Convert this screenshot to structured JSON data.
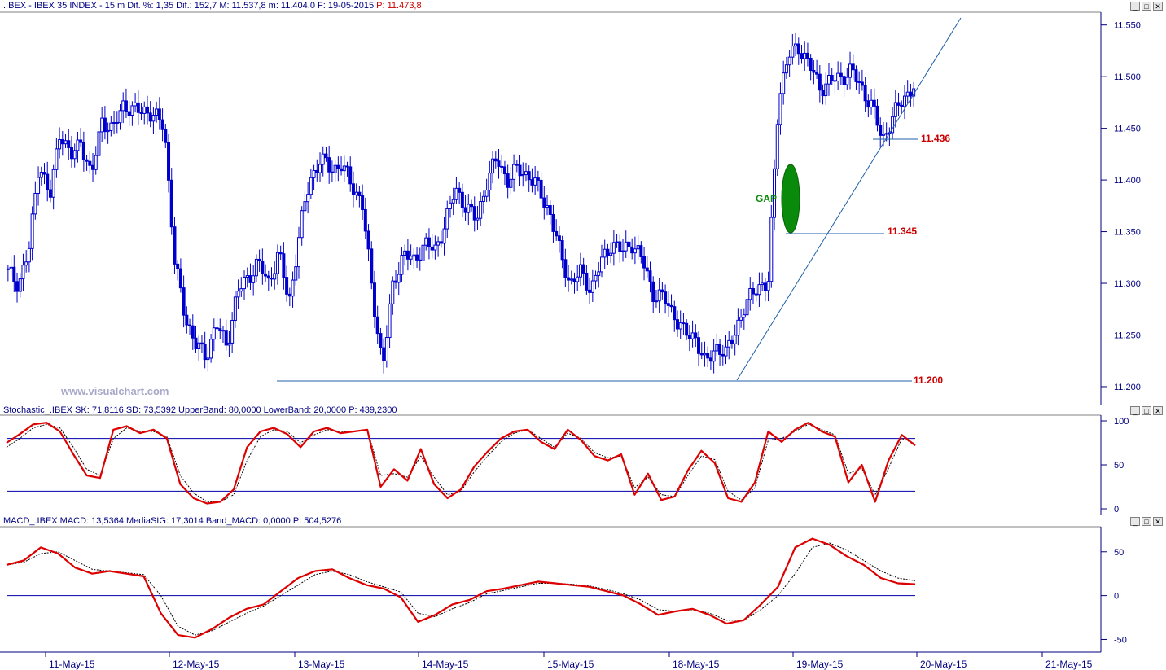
{
  "price_header": {
    "name": ".IBEX - IBEX 35 INDEX -  15 m  Dif. %: 1,35  Dif.: 152,7  M: 11.537,8  m: 11.404,0  F: 19-05-2015",
    "last": "P: 11.473,8"
  },
  "stoch_header": "Stochastic_.IBEX SK: 71,8116  SD: 73,5392  UpperBand: 80,0000  LowerBand: 20,0000  P: 439,2300",
  "macd_header": "MACD_.IBEX MACD: 13,5364  MediaSIG: 17,3014  Band_MACD: 0,0000  P: 504,5276",
  "watermark": "www.visualchart.com",
  "window_buttons": {
    "minimize": "_",
    "restore": "□",
    "close": "✕"
  },
  "annotations": {
    "gap": "GAP",
    "level_high": "11.436",
    "level_mid": "11.345",
    "level_low": "11.200"
  },
  "chart_data": [
    {
      "type": "candlestick",
      "title": ".IBEX - IBEX 35 INDEX - 15 m",
      "yticks": [
        "11.550",
        "11.500",
        "11.450",
        "11.400",
        "11.350",
        "11.300",
        "11.250",
        "11.200"
      ],
      "ylim": [
        11185,
        11560
      ],
      "x_dates": [
        "11-May-15",
        "12-May-15",
        "13-May-15",
        "14-May-15",
        "15-May-15",
        "18-May-15",
        "19-May-15",
        "20-May-15",
        "21-May-15"
      ],
      "horizontal_levels": [
        11436,
        11345,
        11200
      ],
      "colors": {
        "candle": "#0000cc",
        "levels": "#1f5fa8",
        "gap": "#0a8a0a",
        "level_text": "#cc0000"
      },
      "close_path": [
        [
          11310,
          11300
        ],
        [
          11330,
          11420
        ],
        [
          11380,
          11450
        ],
        [
          11420,
          11440
        ],
        [
          11400,
          11460
        ],
        [
          11445,
          11475
        ],
        [
          11465,
          11470
        ],
        [
          11460,
          11455
        ],
        [
          11320,
          11270
        ],
        [
          11240,
          11230
        ],
        [
          11260,
          11240
        ],
        [
          11290,
          11305
        ],
        [
          11320,
          11300
        ],
        [
          11330,
          11280
        ],
        [
          11350,
          11400
        ],
        [
          11420,
          11410
        ],
        [
          11415,
          11395
        ],
        [
          11380,
          11290
        ],
        [
          11220,
          11300
        ],
        [
          11330,
          11320
        ],
        [
          11340,
          11330
        ],
        [
          11360,
          11390
        ],
        [
          11375,
          11360
        ],
        [
          11400,
          11420
        ],
        [
          11400,
          11410
        ],
        [
          11405,
          11390
        ],
        [
          11370,
          11330
        ],
        [
          11300,
          11310
        ],
        [
          11295,
          11320
        ],
        [
          11340,
          11330
        ],
        [
          11340,
          11320
        ],
        [
          11290,
          11285
        ],
        [
          11270,
          11250
        ],
        [
          11250,
          11220
        ],
        [
          11240,
          11230
        ],
        [
          11260,
          11280
        ],
        [
          11300,
          11295
        ],
        [
          11480,
          11520
        ],
        [
          11530,
          11510
        ],
        [
          11490,
          11495
        ],
        [
          11500,
          11505
        ],
        [
          11490,
          11470
        ],
        [
          11440,
          11460
        ],
        [
          11480,
          11490
        ]
      ]
    },
    {
      "type": "line",
      "title": "Stochastic_.IBEX",
      "yticks": [
        "100",
        "50",
        "0"
      ],
      "ylim": [
        0,
        100
      ],
      "bands": [
        80,
        20
      ],
      "series": [
        {
          "name": "SK",
          "color": "#dd0000",
          "values": [
            75,
            85,
            96,
            98,
            88,
            62,
            38,
            35,
            90,
            94,
            86,
            90,
            80,
            28,
            12,
            6,
            8,
            22,
            70,
            88,
            92,
            85,
            70,
            88,
            92,
            86,
            88,
            90,
            25,
            45,
            32,
            68,
            28,
            12,
            22,
            48,
            65,
            80,
            88,
            90,
            76,
            68,
            90,
            78,
            60,
            55,
            62,
            16,
            40,
            10,
            14,
            44,
            66,
            52,
            12,
            8,
            30,
            88,
            76,
            90,
            98,
            88,
            82,
            30,
            50,
            8,
            55,
            84,
            72
          ]
        },
        {
          "name": "SD",
          "color": "#000000",
          "values": [
            70,
            80,
            92,
            96,
            92,
            70,
            45,
            38,
            80,
            92,
            88,
            88,
            82,
            38,
            18,
            8,
            8,
            16,
            55,
            82,
            90,
            88,
            75,
            84,
            90,
            88,
            88,
            90,
            38,
            40,
            36,
            60,
            36,
            16,
            20,
            42,
            60,
            76,
            86,
            90,
            80,
            70,
            86,
            80,
            64,
            58,
            60,
            24,
            36,
            16,
            14,
            38,
            60,
            56,
            20,
            10,
            24,
            78,
            80,
            88,
            96,
            90,
            84,
            40,
            46,
            16,
            46,
            80,
            74
          ]
        }
      ]
    },
    {
      "type": "line",
      "title": "MACD_.IBEX",
      "yticks": [
        "50",
        "0",
        "-50"
      ],
      "ylim": [
        -57,
        73
      ],
      "bands": [
        0
      ],
      "series": [
        {
          "name": "MACD",
          "color": "#dd0000",
          "values": [
            35,
            40,
            55,
            48,
            32,
            25,
            28,
            25,
            22,
            -20,
            -45,
            -48,
            -38,
            -25,
            -15,
            -10,
            5,
            20,
            28,
            30,
            20,
            12,
            8,
            -2,
            -30,
            -22,
            -10,
            -5,
            5,
            8,
            12,
            16,
            14,
            12,
            10,
            5,
            0,
            -10,
            -22,
            -18,
            -15,
            -22,
            -32,
            -28,
            -10,
            10,
            55,
            65,
            58,
            45,
            35,
            20,
            14,
            13
          ]
        },
        {
          "name": "MediaSIG",
          "color": "#000000",
          "values": [
            35,
            38,
            48,
            50,
            40,
            30,
            28,
            26,
            24,
            0,
            -35,
            -45,
            -40,
            -30,
            -20,
            -12,
            0,
            12,
            24,
            28,
            24,
            16,
            10,
            4,
            -20,
            -24,
            -15,
            -8,
            2,
            6,
            10,
            14,
            14,
            13,
            11,
            7,
            2,
            -5,
            -16,
            -18,
            -16,
            -20,
            -28,
            -28,
            -16,
            0,
            25,
            55,
            60,
            52,
            40,
            28,
            20,
            17
          ]
        }
      ]
    }
  ]
}
